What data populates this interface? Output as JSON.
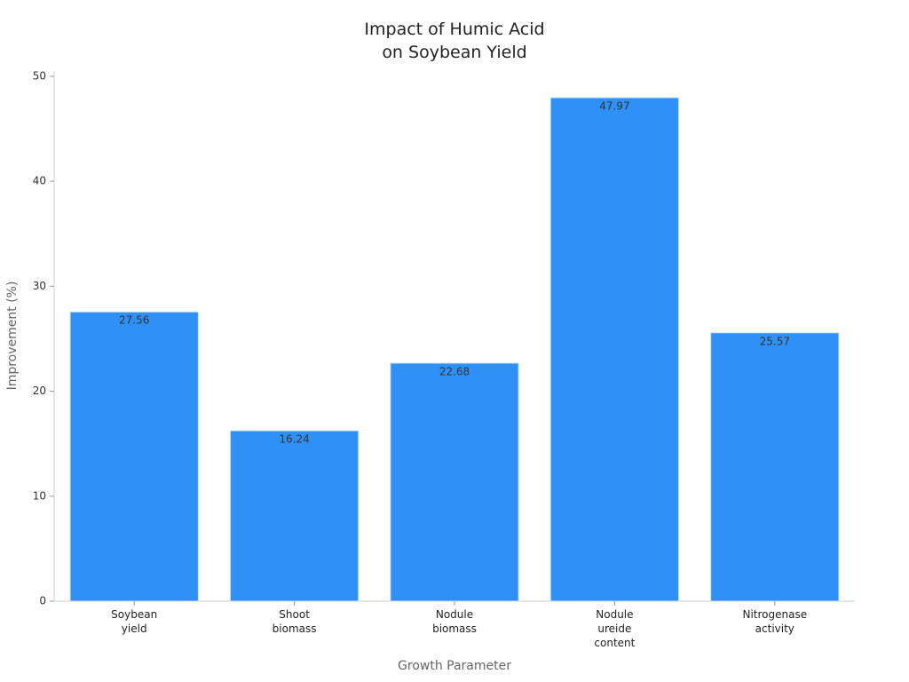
{
  "chart_data": {
    "type": "bar",
    "title": "Impact of Humic Acid\non Soybean Yield",
    "x_label": "Growth Parameter",
    "y_label": "Improvement (%)",
    "categories": [
      "Soybean\nyield",
      "Shoot\nbiomass",
      "Nodule\nbiomass",
      "Nodule\nureide\ncontent",
      "Nitrogenase\nactivity"
    ],
    "values": [
      27.56,
      16.24,
      22.68,
      47.97,
      25.57
    ],
    "color": "#2f91f7",
    "ylim": [
      0,
      50
    ],
    "yticks": [
      0,
      10,
      20,
      30,
      40,
      50
    ],
    "grid": false
  }
}
